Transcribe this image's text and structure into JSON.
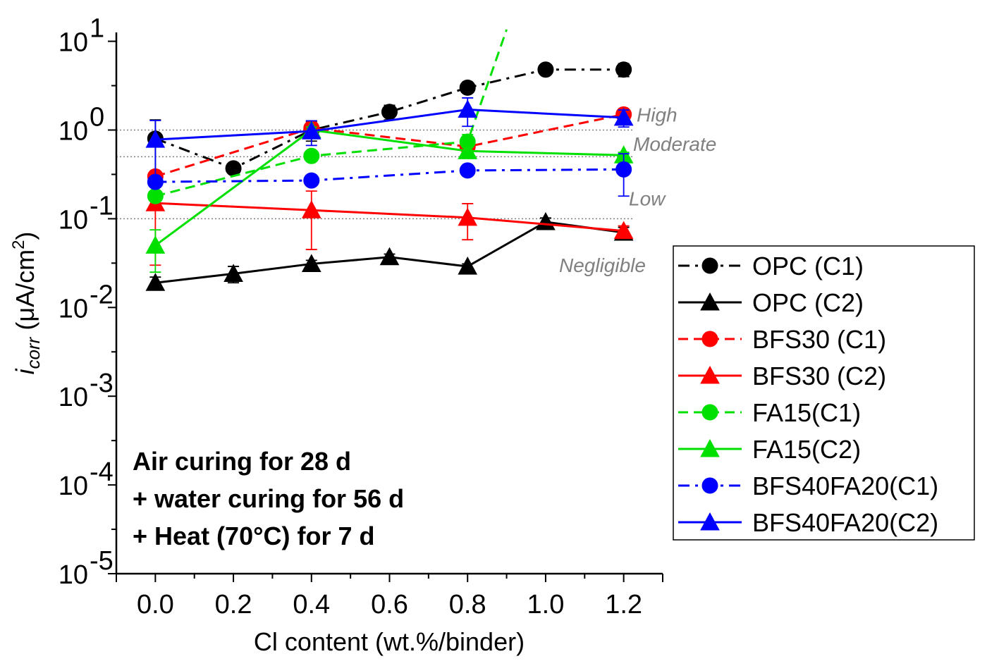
{
  "chart_data": {
    "type": "line",
    "xlabel": "Cl content (wt.%/binder)",
    "ylabel_main": "i",
    "ylabel_sub": "corr",
    "ylabel_rest": " (μA/cm",
    "ylabel_sup": "2",
    "ylabel_end": ")",
    "x_ticks": [
      "0.0",
      "0.2",
      "0.4",
      "0.6",
      "0.8",
      "1.0",
      "1.2"
    ],
    "xlim": [
      -0.1,
      1.3
    ],
    "y_scale": "log",
    "ylim": [
      1e-05,
      10
    ],
    "y_ticks": [
      {
        "base": "10",
        "exp": "1"
      },
      {
        "base": "10",
        "exp": "0"
      },
      {
        "base": "10",
        "exp": "-1"
      },
      {
        "base": "10",
        "exp": "-2"
      },
      {
        "base": "10",
        "exp": "-3"
      },
      {
        "base": "10",
        "exp": "-4"
      },
      {
        "base": "10",
        "exp": "-5"
      }
    ],
    "y_tick_values": [
      10,
      1,
      0.1,
      0.01,
      0.001,
      0.0001,
      1e-05
    ],
    "reference_lines": [
      1.0,
      0.5,
      0.1
    ],
    "zones": [
      {
        "label": "High",
        "y": 1.5
      },
      {
        "label": "Moderate",
        "y": 0.7
      },
      {
        "label": "Low",
        "y": 0.17
      },
      {
        "label": "Negligible",
        "y": 0.03
      }
    ],
    "annotation": [
      "Air curing for 28 d",
      "+ water curing for 56 d",
      "+ Heat (70°C) for 7 d"
    ],
    "legend_position": "right",
    "series": [
      {
        "name": "OPC (C1)",
        "color": "#000000",
        "marker": "circle",
        "dash": "dashdot",
        "x": [
          0.0,
          0.2,
          0.4,
          0.6,
          0.8,
          1.0,
          1.2
        ],
        "y": [
          0.8,
          0.37,
          1.0,
          1.6,
          3.0,
          4.8,
          4.8
        ],
        "err": [
          0.5,
          0,
          0.25,
          0.3,
          0.3,
          0.4,
          0.8
        ]
      },
      {
        "name": "OPC (C2)",
        "color": "#000000",
        "marker": "triangle",
        "dash": "solid",
        "x": [
          0.0,
          0.2,
          0.4,
          0.6,
          0.8,
          1.0,
          1.2
        ],
        "y": [
          0.019,
          0.024,
          0.031,
          0.037,
          0.029,
          0.092,
          0.07
        ],
        "err": [
          0.003,
          0.005,
          0.003,
          0.003,
          0.002,
          0.01,
          0.01
        ]
      },
      {
        "name": "BFS30 (C1)",
        "color": "#ff0000",
        "marker": "circle",
        "dash": "dashed",
        "x": [
          0.0,
          0.4,
          0.8,
          1.2
        ],
        "y": [
          0.3,
          1.05,
          0.65,
          1.5
        ],
        "err": [
          0.03,
          0.1,
          0.05,
          0.1
        ]
      },
      {
        "name": "BFS30 (C2)",
        "color": "#ff0000",
        "marker": "triangle",
        "dash": "solid",
        "x": [
          0.0,
          0.4,
          0.8,
          1.2
        ],
        "y": [
          0.15,
          0.125,
          0.103,
          0.073
        ],
        "err": [
          0.12,
          0.08,
          0.045,
          0.01
        ]
      },
      {
        "name": "FA15(C1)",
        "color": "#00e000",
        "marker": "circle",
        "dash": "dashed",
        "x": [
          0.0,
          0.4,
          0.8,
          0.9
        ],
        "y": [
          0.18,
          0.51,
          0.74,
          15
        ],
        "err": [
          0.02,
          0.05,
          0.15,
          0
        ],
        "marker_points": 3
      },
      {
        "name": "FA15(C2)",
        "color": "#00e000",
        "marker": "triangle",
        "dash": "solid",
        "x": [
          0.0,
          0.4,
          0.8,
          1.2
        ],
        "y": [
          0.05,
          1.0,
          0.58,
          0.52
        ],
        "err": [
          0.025,
          0.08,
          0.05,
          0.04
        ]
      },
      {
        "name": "BFS40FA20(C1)",
        "color": "#0000ff",
        "marker": "circle",
        "dash": "dashdot",
        "x": [
          0.0,
          0.4,
          0.8,
          1.2
        ],
        "y": [
          0.26,
          0.27,
          0.35,
          0.36
        ],
        "err": [
          0.02,
          0.02,
          0.03,
          0.18
        ]
      },
      {
        "name": "BFS40FA20(C2)",
        "color": "#0000ff",
        "marker": "triangle",
        "dash": "solid",
        "x": [
          0.0,
          0.4,
          0.8,
          1.2
        ],
        "y": [
          0.78,
          0.97,
          1.7,
          1.38
        ],
        "err": [
          0.5,
          0.3,
          0.6,
          0.3
        ]
      }
    ]
  }
}
